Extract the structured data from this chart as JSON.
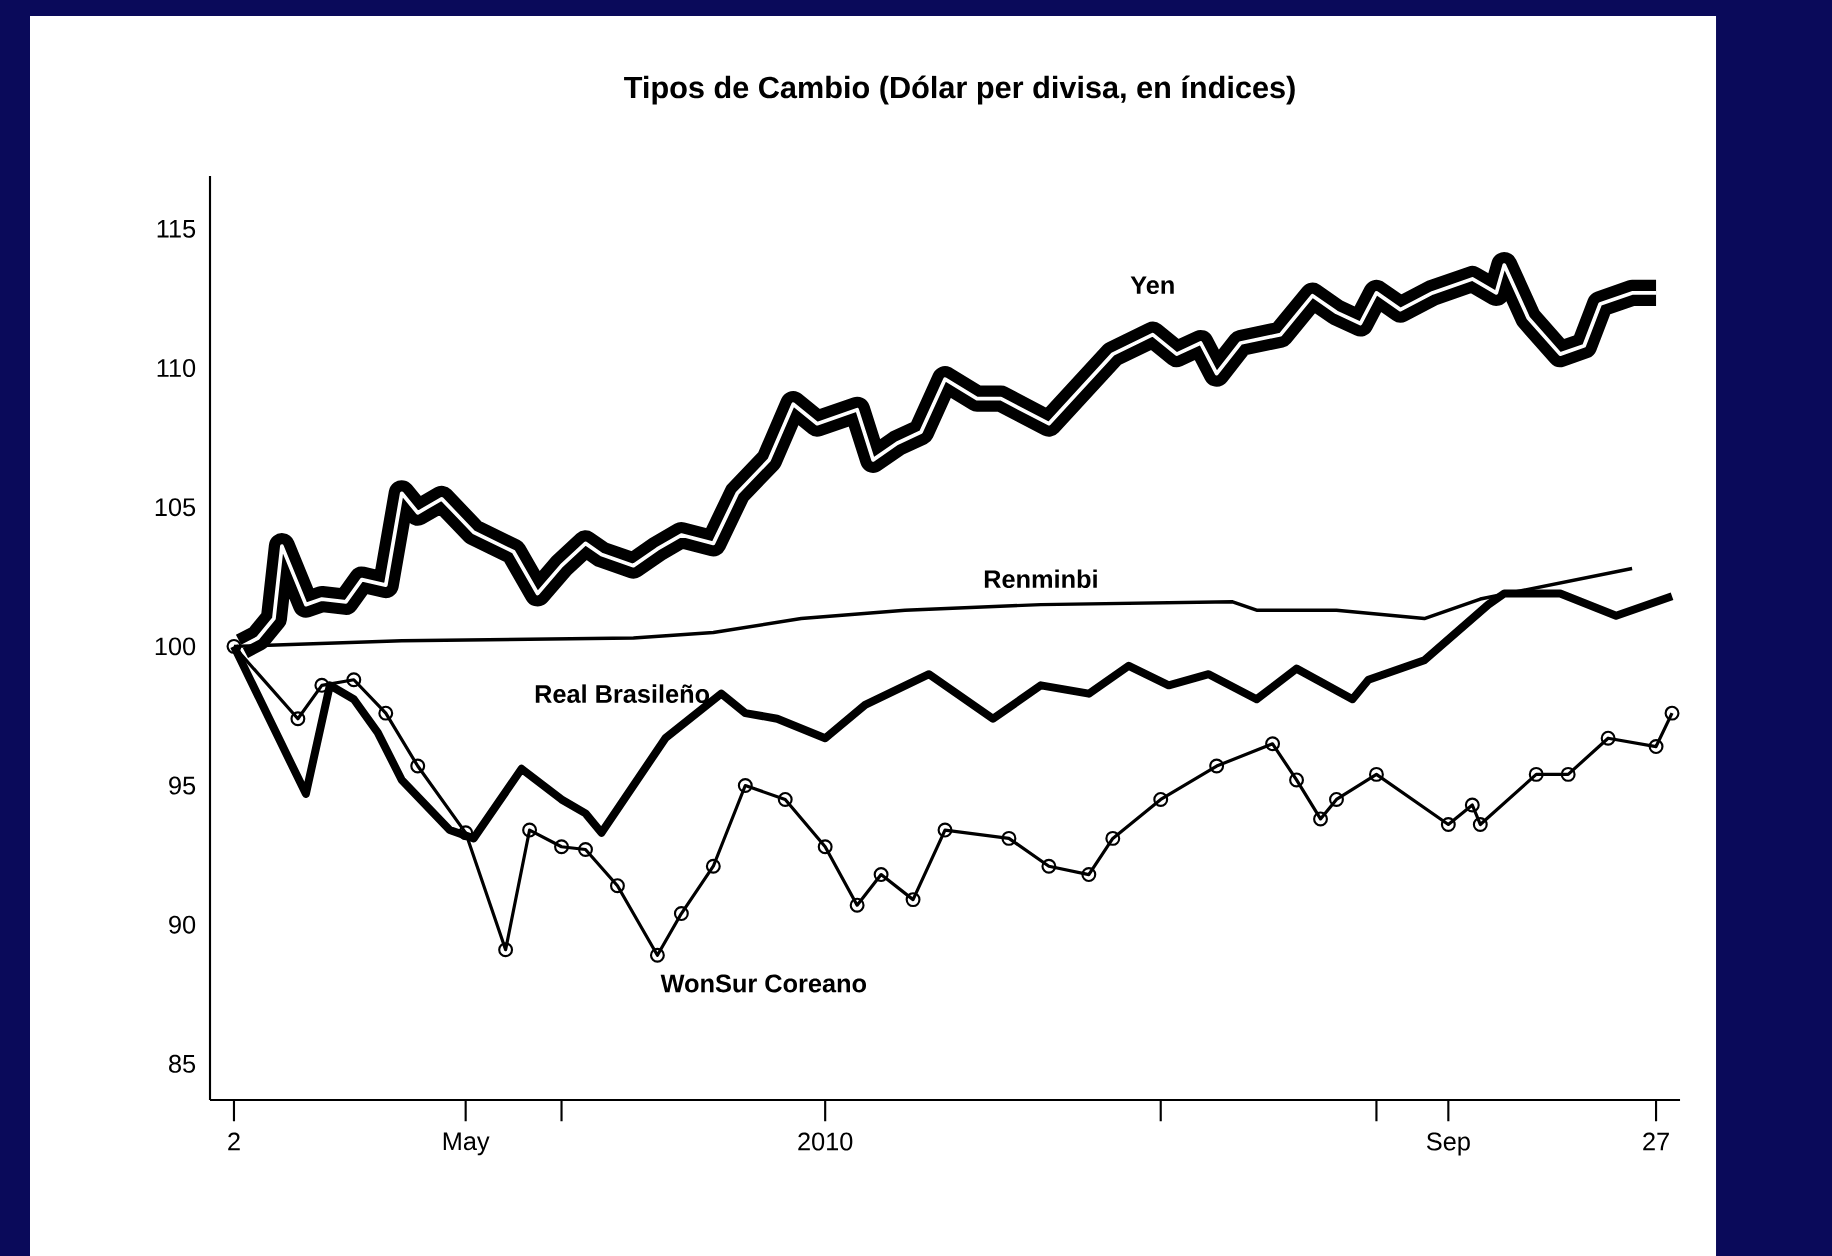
{
  "chart_data": {
    "type": "line",
    "title": "Tipos de Cambio (Dólar per divisa, en índices)",
    "xlim": [
      "2010-03-30",
      "2010-09-30"
    ],
    "xticks": [
      {
        "value": "2010-04-02",
        "label": "2"
      },
      {
        "value": "2010-05-01",
        "label": "May"
      },
      {
        "value": "2010-05-13",
        "label": null
      },
      {
        "value": "2010-06-15",
        "label": "2010"
      },
      {
        "value": "2010-07-27",
        "label": null
      },
      {
        "value": "2010-08-23",
        "label": null
      },
      {
        "value": "2010-09-01",
        "label": "Sep"
      },
      {
        "value": "2010-09-27",
        "label": "27"
      }
    ],
    "ylim": [
      83.7,
      116.9
    ],
    "yticks": [
      85,
      90,
      95,
      100,
      105,
      110,
      115
    ],
    "series": [
      {
        "name": "Yen",
        "color": "#000000",
        "x": [
          "2010-04-03",
          "2010-04-05",
          "2010-04-07",
          "2010-04-08",
          "2010-04-11",
          "2010-04-13",
          "2010-04-16",
          "2010-04-18",
          "2010-04-21",
          "2010-04-23",
          "2010-04-25",
          "2010-04-28",
          "2010-05-02",
          "2010-05-07",
          "2010-05-10",
          "2010-05-13",
          "2010-05-16",
          "2010-05-18",
          "2010-05-22",
          "2010-05-25",
          "2010-05-28",
          "2010-06-01",
          "2010-06-04",
          "2010-06-08",
          "2010-06-11",
          "2010-06-14",
          "2010-06-19",
          "2010-06-21",
          "2010-06-24",
          "2010-06-27",
          "2010-06-30",
          "2010-07-04",
          "2010-07-07",
          "2010-07-13",
          "2010-07-21",
          "2010-07-26",
          "2010-07-29",
          "2010-08-01",
          "2010-08-03",
          "2010-08-06",
          "2010-08-11",
          "2010-08-15",
          "2010-08-18",
          "2010-08-21",
          "2010-08-23",
          "2010-08-26",
          "2010-08-30",
          "2010-09-04",
          "2010-09-07",
          "2010-09-08",
          "2010-09-11",
          "2010-09-15",
          "2010-09-18",
          "2010-09-20",
          "2010-09-24",
          "2010-09-27"
        ],
        "values": [
          100.0,
          100.3,
          101.0,
          103.6,
          101.5,
          101.7,
          101.6,
          102.4,
          102.2,
          105.5,
          104.8,
          105.3,
          104.1,
          103.4,
          101.9,
          102.9,
          103.7,
          103.3,
          102.9,
          103.5,
          104.0,
          103.7,
          105.5,
          106.7,
          108.7,
          108.0,
          108.5,
          106.7,
          107.3,
          107.7,
          109.6,
          108.9,
          108.9,
          108.0,
          110.5,
          111.2,
          110.5,
          110.9,
          109.8,
          110.9,
          111.2,
          112.6,
          112.0,
          111.6,
          112.7,
          112.1,
          112.7,
          113.2,
          112.7,
          113.7,
          111.8,
          110.5,
          110.8,
          112.3,
          112.7,
          112.7
        ]
      },
      {
        "name": "Renminbi",
        "color": "#000000",
        "x": [
          "2010-04-02",
          "2010-04-23",
          "2010-05-22",
          "2010-06-01",
          "2010-06-12",
          "2010-06-25",
          "2010-07-12",
          "2010-08-05",
          "2010-08-08",
          "2010-08-18",
          "2010-08-29",
          "2010-09-05",
          "2010-09-24"
        ],
        "values": [
          100.0,
          100.2,
          100.3,
          100.5,
          101.0,
          101.3,
          101.5,
          101.6,
          101.3,
          101.3,
          101.0,
          101.7,
          102.8
        ]
      },
      {
        "name": "Real Brasileño",
        "color": "#000000",
        "x": [
          "2010-04-02",
          "2010-04-11",
          "2010-04-14",
          "2010-04-17",
          "2010-04-20",
          "2010-04-23",
          "2010-04-29",
          "2010-05-02",
          "2010-05-08",
          "2010-05-13",
          "2010-05-16",
          "2010-05-18",
          "2010-05-22",
          "2010-05-26",
          "2010-06-02",
          "2010-06-05",
          "2010-06-09",
          "2010-06-15",
          "2010-06-20",
          "2010-06-28",
          "2010-07-06",
          "2010-07-12",
          "2010-07-18",
          "2010-07-23",
          "2010-07-28",
          "2010-08-02",
          "2010-08-08",
          "2010-08-13",
          "2010-08-20",
          "2010-08-22",
          "2010-08-29",
          "2010-09-06",
          "2010-09-08",
          "2010-09-15",
          "2010-09-22",
          "2010-09-29"
        ],
        "values": [
          100.0,
          94.7,
          98.6,
          98.1,
          96.9,
          95.2,
          93.4,
          93.1,
          95.6,
          94.5,
          94.0,
          93.3,
          95.0,
          96.7,
          98.3,
          97.6,
          97.4,
          96.7,
          97.9,
          99.0,
          97.4,
          98.6,
          98.3,
          99.3,
          98.6,
          99.0,
          98.1,
          99.2,
          98.1,
          98.8,
          99.5,
          101.5,
          101.9,
          101.9,
          101.1,
          101.8
        ]
      },
      {
        "name": "WonSur Coreano",
        "color": "#000000",
        "marker": "circle",
        "x": [
          "2010-04-02",
          "2010-04-10",
          "2010-04-13",
          "2010-04-17",
          "2010-04-21",
          "2010-04-25",
          "2010-05-01",
          "2010-05-06",
          "2010-05-09",
          "2010-05-13",
          "2010-05-16",
          "2010-05-20",
          "2010-05-25",
          "2010-05-28",
          "2010-06-01",
          "2010-06-05",
          "2010-06-10",
          "2010-06-15",
          "2010-06-19",
          "2010-06-22",
          "2010-06-26",
          "2010-06-30",
          "2010-07-08",
          "2010-07-13",
          "2010-07-18",
          "2010-07-21",
          "2010-07-27",
          "2010-08-03",
          "2010-08-10",
          "2010-08-13",
          "2010-08-16",
          "2010-08-18",
          "2010-08-23",
          "2010-09-01",
          "2010-09-04",
          "2010-09-05",
          "2010-09-12",
          "2010-09-16",
          "2010-09-21",
          "2010-09-27",
          "2010-09-29"
        ],
        "values": [
          100.0,
          97.4,
          98.6,
          98.8,
          97.6,
          95.7,
          93.3,
          89.1,
          93.4,
          92.8,
          92.7,
          91.4,
          88.9,
          90.4,
          92.1,
          95.0,
          94.5,
          92.8,
          90.7,
          91.8,
          90.9,
          93.4,
          93.1,
          92.1,
          91.8,
          93.1,
          94.5,
          95.7,
          96.5,
          95.2,
          93.8,
          94.5,
          95.4,
          93.6,
          94.3,
          93.6,
          95.4,
          95.4,
          96.7,
          96.4,
          97.6
        ]
      }
    ]
  }
}
